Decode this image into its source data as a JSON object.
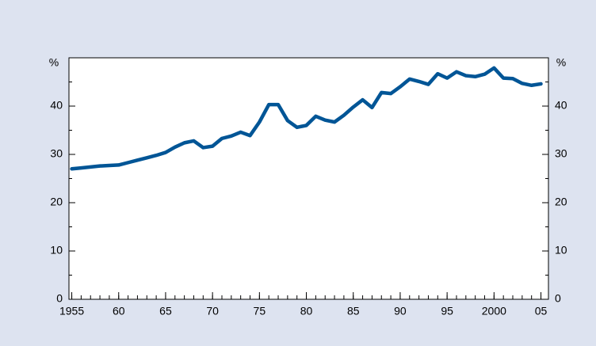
{
  "chart_data": {
    "type": "line",
    "y_label": "%",
    "x": [
      1955,
      1956,
      1957,
      1958,
      1959,
      1960,
      1961,
      1962,
      1963,
      1964,
      1965,
      1966,
      1967,
      1968,
      1969,
      1970,
      1971,
      1972,
      1973,
      1974,
      1975,
      1976,
      1977,
      1978,
      1979,
      1980,
      1981,
      1982,
      1983,
      1984,
      1985,
      1986,
      1987,
      1988,
      1989,
      1990,
      1991,
      1992,
      1993,
      1994,
      1995,
      1996,
      1997,
      1998,
      1999,
      2000,
      2001,
      2002,
      2003,
      2004,
      2005
    ],
    "series": [
      {
        "color": "#005596",
        "values": [
          27,
          27.2,
          27.4,
          27.6,
          27.7,
          27.8,
          28.3,
          28.8,
          29.3,
          29.8,
          30.4,
          31.5,
          32.4,
          32.8,
          31.4,
          31.7,
          33.3,
          33.8,
          34.6,
          33.9,
          36.7,
          40.3,
          40.3,
          37.0,
          35.6,
          36.0,
          37.9,
          37.1,
          36.7,
          38.1,
          39.8,
          41.3,
          39.7,
          42.8,
          42.6,
          44.0,
          45.6,
          45.1,
          44.5,
          46.7,
          45.8,
          47.1,
          46.3,
          46.1,
          46.6,
          47.9,
          45.8,
          45.7,
          44.7,
          44.3,
          44.6
        ]
      }
    ],
    "xlim": [
      1954.7,
      2005.8
    ],
    "xticks": [
      {
        "value": 1955,
        "label": "1955"
      },
      {
        "value": 1960,
        "label": "60"
      },
      {
        "value": 1965,
        "label": "65"
      },
      {
        "value": 1970,
        "label": "70"
      },
      {
        "value": 1975,
        "label": "75"
      },
      {
        "value": 1980,
        "label": "80"
      },
      {
        "value": 1985,
        "label": "85"
      },
      {
        "value": 1990,
        "label": "90"
      },
      {
        "value": 1995,
        "label": "95"
      },
      {
        "value": 2000,
        "label": "2000"
      },
      {
        "value": 2005,
        "label": "05"
      }
    ],
    "ylim": [
      0,
      50
    ],
    "yticks": [
      0,
      10,
      20,
      30,
      40
    ],
    "yminor_ticks": [
      5,
      15,
      25,
      35,
      45
    ]
  }
}
